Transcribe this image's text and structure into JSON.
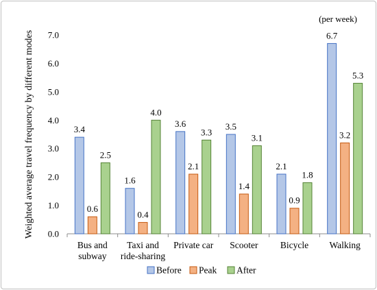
{
  "chart_data": {
    "type": "bar",
    "categories": [
      [
        "Bus and",
        "subway"
      ],
      [
        "Taxi and",
        "ride-sharing"
      ],
      [
        "Private car"
      ],
      [
        "Scooter"
      ],
      [
        "Bicycle"
      ],
      [
        "Walking"
      ]
    ],
    "series": [
      {
        "name": "Before",
        "values": [
          3.4,
          1.6,
          3.6,
          3.5,
          2.1,
          6.7
        ],
        "labels": [
          "3.4",
          "1.6",
          "3.6",
          "3.5",
          "2.1",
          "6.7"
        ],
        "color": "#b4c7e7",
        "stroke": "#4472c4"
      },
      {
        "name": "Peak",
        "values": [
          0.6,
          0.4,
          2.1,
          1.4,
          0.9,
          3.2
        ],
        "labels": [
          "0.6",
          "0.4",
          "2.1",
          "1.4",
          "0.9",
          "3.2"
        ],
        "color": "#f4b183",
        "stroke": "#c55a11"
      },
      {
        "name": "After",
        "values": [
          2.5,
          4.0,
          3.3,
          3.1,
          1.8,
          5.3
        ],
        "labels": [
          "2.5",
          "4.0",
          "3.3",
          "3.1",
          "1.8",
          "5.3"
        ],
        "color": "#a9d18e",
        "stroke": "#548235"
      }
    ],
    "ylabel": "Weighted average travel frequency by different modes",
    "unit_note": "(per week)",
    "ylim": [
      0,
      7
    ],
    "yticks": [
      "0.0",
      "1.0",
      "2.0",
      "3.0",
      "4.0",
      "5.0",
      "6.0",
      "7.0"
    ],
    "grid": false,
    "legend_position": "bottom"
  }
}
